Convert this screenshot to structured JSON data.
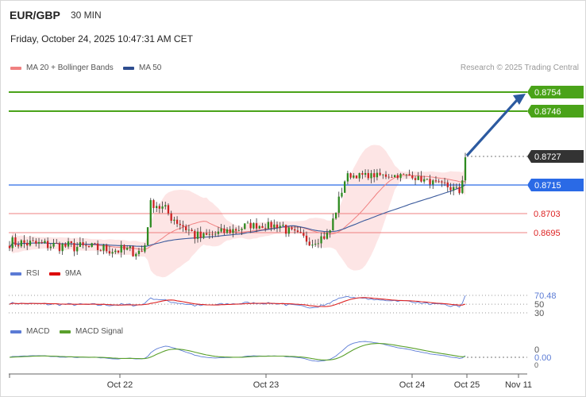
{
  "header": {
    "symbol": "EUR/GBP",
    "timeframe": "30 MIN",
    "timestamp": "Friday, October 24, 2025 10:47:31 AM CET",
    "credit": "Research © 2025 Trading Central"
  },
  "legends": {
    "price": [
      {
        "label": "MA 20 + Bollinger Bands",
        "color": "#f08080"
      },
      {
        "label": "MA 50",
        "color": "#2e4d8f"
      }
    ],
    "rsi": [
      {
        "label": "RSI",
        "color": "#5b7bd5"
      },
      {
        "label": "9MA",
        "color": "#dd0000"
      }
    ],
    "macd": [
      {
        "label": "MACD",
        "color": "#5b7bd5"
      },
      {
        "label": "MACD Signal",
        "color": "#5aa02c"
      }
    ]
  },
  "colors": {
    "resistance": "#4aa319",
    "pivot": "#2a6ae6",
    "support": "#ef8080",
    "current": "#333333",
    "arrow": "#2c5aa0",
    "bollinger_fill": "#fde0e0",
    "candle_up": "#2d8a1f",
    "candle_down": "#cc2222"
  },
  "chart_data": [
    {
      "type": "candlestick",
      "title": "EUR/GBP",
      "ylim": [
        0.8682,
        0.8764
      ],
      "levels": [
        {
          "value": 0.8754,
          "label": "0.8754",
          "kind": "resistance"
        },
        {
          "value": 0.8746,
          "label": "0.8746",
          "kind": "resistance"
        },
        {
          "value": 0.8727,
          "label": "0.8727",
          "kind": "current"
        },
        {
          "value": 0.8715,
          "label": "0.8715",
          "kind": "pivot"
        },
        {
          "value": 0.8703,
          "label": "0.8703",
          "kind": "support"
        },
        {
          "value": 0.8695,
          "label": "0.8695",
          "kind": "support"
        }
      ],
      "x_ticks": [
        "Oct 22",
        "Oct 23",
        "Oct 24",
        "Oct 25",
        "Nov 11"
      ],
      "segments": [
        {
          "n": 46,
          "from": 0.8691,
          "to": 0.8687,
          "vol": 0.00025
        },
        {
          "n": 3,
          "from": 0.869,
          "to": 0.8707,
          "vol": 0.0002
        },
        {
          "n": 16,
          "from": 0.8708,
          "to": 0.8693,
          "vol": 0.0003
        },
        {
          "n": 15,
          "from": 0.8693,
          "to": 0.8697,
          "vol": 0.0002
        },
        {
          "n": 14,
          "from": 0.8698,
          "to": 0.8698,
          "vol": 0.00015
        },
        {
          "n": 10,
          "from": 0.8696,
          "to": 0.8691,
          "vol": 0.0002
        },
        {
          "n": 5,
          "from": 0.8692,
          "to": 0.8694,
          "vol": 0.0002
        },
        {
          "n": 6,
          "from": 0.8696,
          "to": 0.8717,
          "vol": 0.0002
        },
        {
          "n": 23,
          "from": 0.8719,
          "to": 0.8719,
          "vol": 0.00012
        },
        {
          "n": 10,
          "from": 0.8718,
          "to": 0.8715,
          "vol": 0.00012
        },
        {
          "n": 6,
          "from": 0.8715,
          "to": 0.8712,
          "vol": 0.0002
        },
        {
          "n": 2,
          "from": 0.8718,
          "to": 0.8727,
          "vol": 0.0002
        }
      ]
    },
    {
      "type": "line",
      "title": "RSI",
      "ylim": [
        30,
        70.48
      ],
      "y_ticks": [
        70.48,
        50,
        30
      ],
      "series": [
        {
          "name": "RSI",
          "last": 70.48
        },
        {
          "name": "9MA"
        }
      ]
    },
    {
      "type": "line",
      "title": "MACD",
      "y_ticks": [
        0,
        0.0
      ],
      "series": [
        {
          "name": "MACD",
          "last": 0.0
        },
        {
          "name": "MACD Signal"
        }
      ]
    }
  ]
}
